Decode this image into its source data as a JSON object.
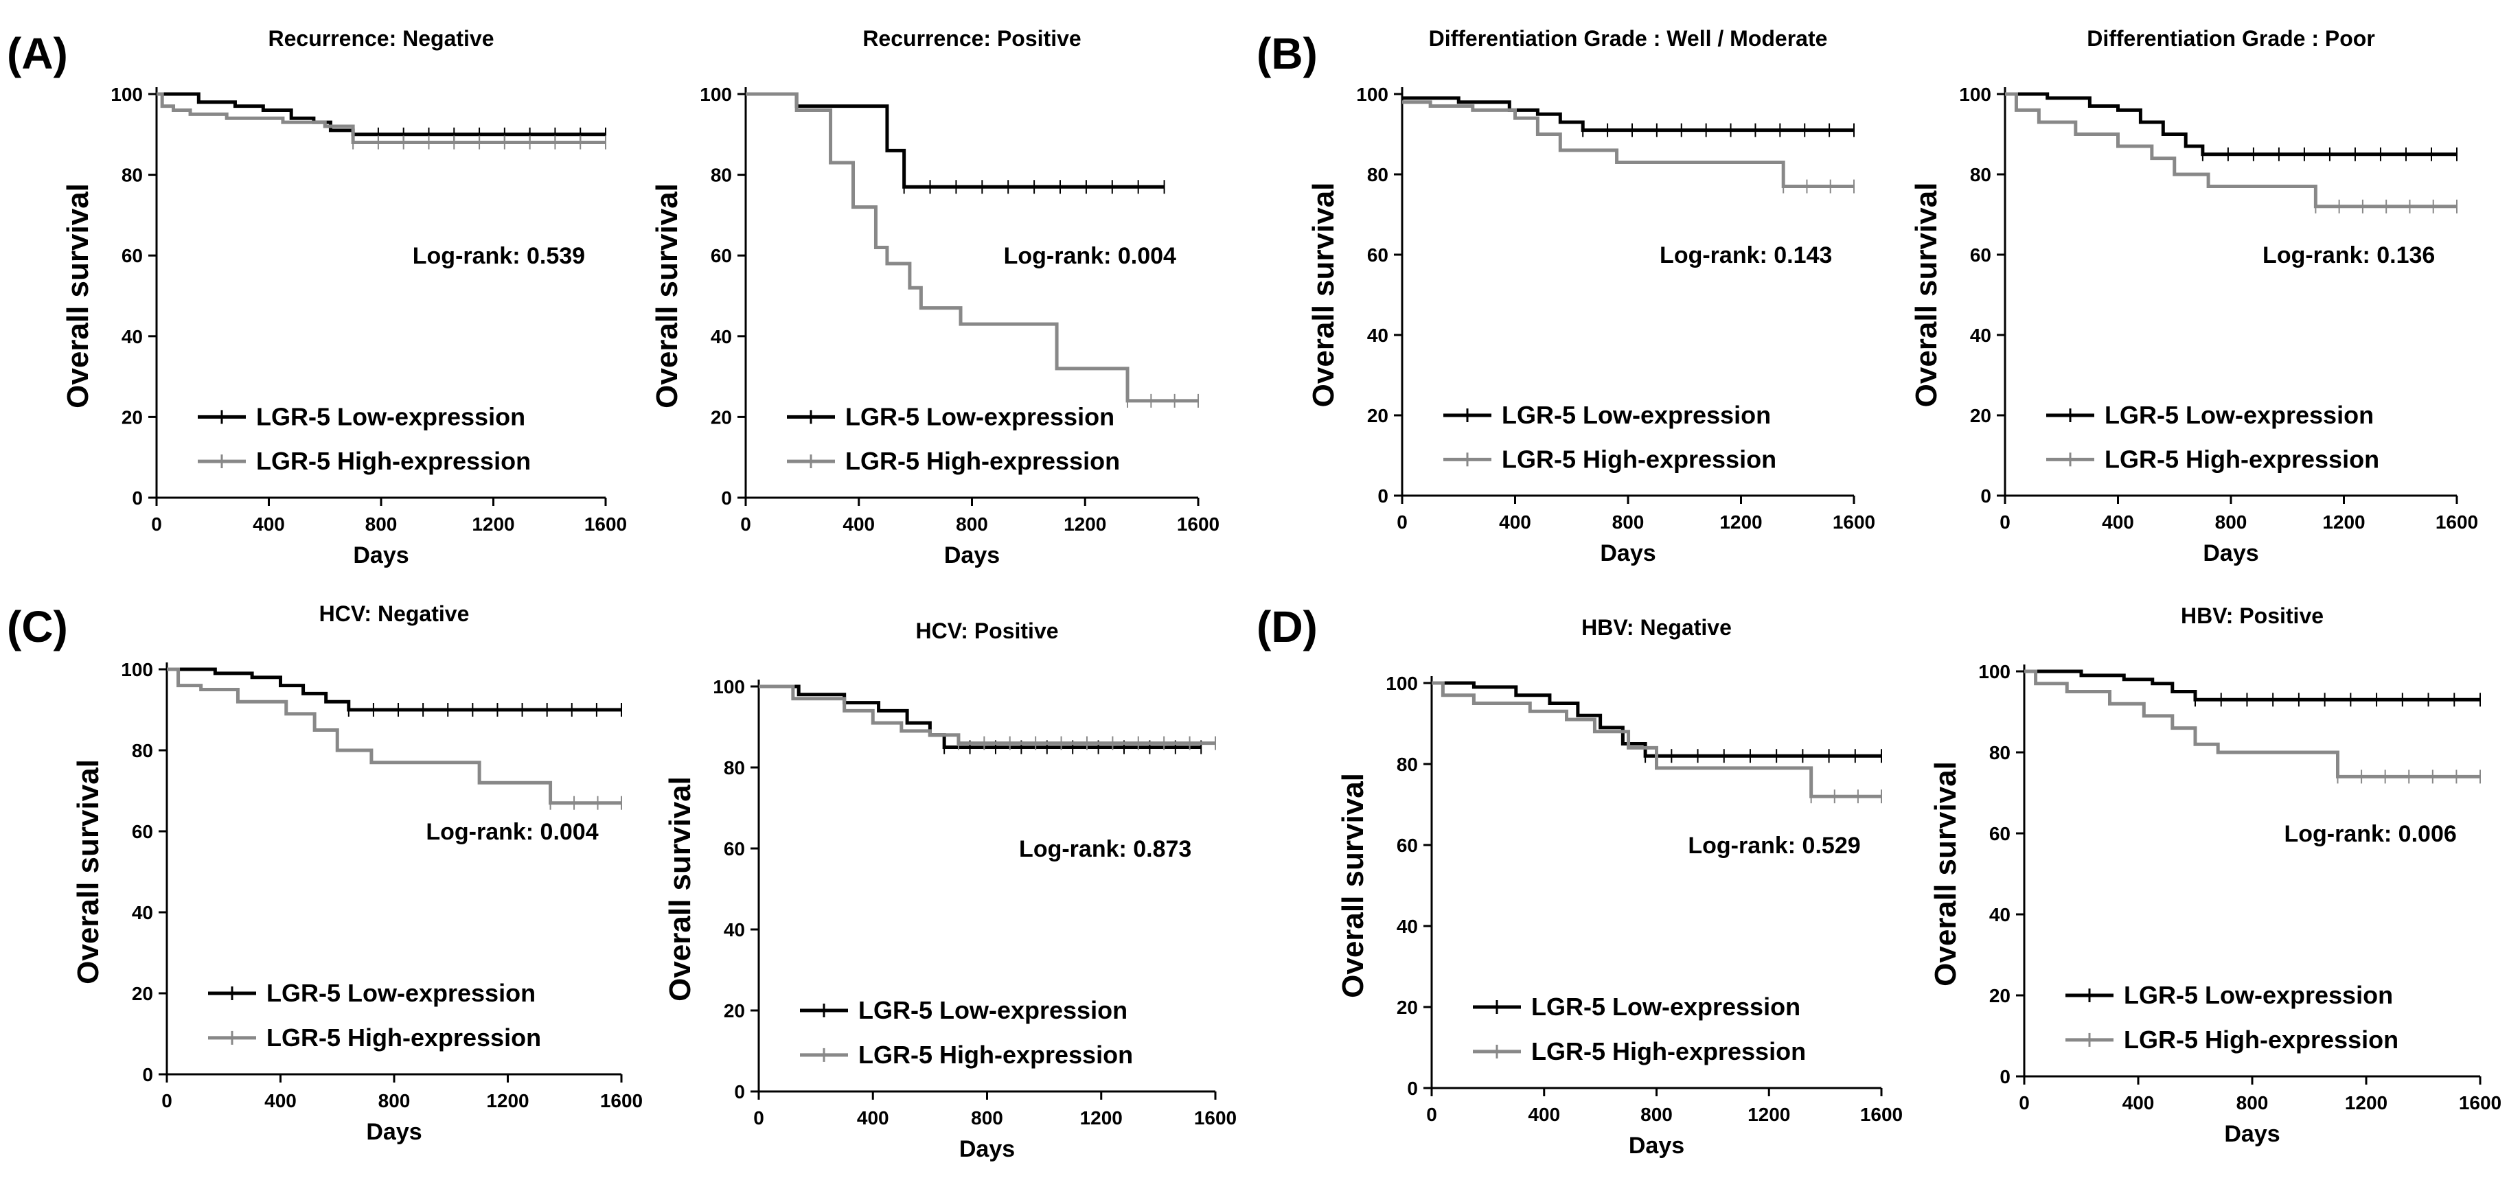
{
  "figure": {
    "panel_letters": [
      "(A)",
      "(B)",
      "(C)",
      "(D)"
    ]
  },
  "chart_data": [
    {
      "type": "line",
      "panel": "(A)",
      "title": "Recurrence: Negative",
      "xlabel": "Days",
      "ylabel": "Overall survival",
      "xlim": [
        0,
        1600
      ],
      "ylim": [
        0,
        100
      ],
      "xticks": [
        0,
        400,
        800,
        1200,
        1600
      ],
      "yticks": [
        0,
        20,
        40,
        60,
        80,
        100
      ],
      "annotation": "Log-rank: 0.539",
      "series": [
        {
          "name": "LGR-5  Low-expression",
          "color": "#000000",
          "x": [
            0,
            150,
            280,
            380,
            480,
            560,
            620,
            700,
            1600
          ],
          "y": [
            100,
            98,
            97,
            96,
            94,
            93,
            91,
            90,
            90
          ]
        },
        {
          "name": "LGR-5  High-expression",
          "color": "#888888",
          "x": [
            0,
            20,
            60,
            120,
            250,
            450,
            600,
            700,
            1600
          ],
          "y": [
            100,
            97,
            96,
            95,
            94,
            93,
            92,
            88,
            88
          ]
        }
      ]
    },
    {
      "type": "line",
      "panel": "(A)",
      "title": "Recurrence: Positive",
      "xlabel": "Days",
      "ylabel": "Overall survival",
      "xlim": [
        0,
        1600
      ],
      "ylim": [
        0,
        100
      ],
      "xticks": [
        0,
        400,
        800,
        1200,
        1600
      ],
      "yticks": [
        0,
        20,
        40,
        60,
        80,
        100
      ],
      "annotation": "Log-rank: 0.004",
      "series": [
        {
          "name": "LGR-5  Low-expression",
          "color": "#000000",
          "x": [
            0,
            180,
            500,
            560,
            1480
          ],
          "y": [
            100,
            97,
            86,
            77,
            77
          ]
        },
        {
          "name": "LGR-5  High-expression",
          "color": "#888888",
          "x": [
            0,
            180,
            300,
            380,
            460,
            500,
            580,
            620,
            760,
            1100,
            1350,
            1600
          ],
          "y": [
            100,
            96,
            83,
            72,
            62,
            58,
            52,
            47,
            43,
            32,
            24,
            24
          ]
        }
      ]
    },
    {
      "type": "line",
      "panel": "(B)",
      "title": "Differentiation Grade : Well / Moderate",
      "xlabel": "Days",
      "ylabel": "Overall survival",
      "xlim": [
        0,
        1600
      ],
      "ylim": [
        0,
        100
      ],
      "xticks": [
        0,
        400,
        800,
        1200,
        1600
      ],
      "yticks": [
        0,
        20,
        40,
        60,
        80,
        100
      ],
      "annotation": "Log-rank: 0.143",
      "series": [
        {
          "name": "LGR-5  Low-expression",
          "color": "#000000",
          "x": [
            0,
            200,
            380,
            480,
            560,
            640,
            1600
          ],
          "y": [
            99,
            98,
            96,
            95,
            93,
            91,
            91
          ]
        },
        {
          "name": "LGR-5  High-expression",
          "color": "#888888",
          "x": [
            0,
            100,
            250,
            400,
            480,
            560,
            760,
            1350,
            1600
          ],
          "y": [
            98,
            97,
            96,
            94,
            90,
            86,
            83,
            77,
            77
          ]
        }
      ]
    },
    {
      "type": "line",
      "panel": "(B)",
      "title": "Differentiation Grade : Poor",
      "xlabel": "Days",
      "ylabel": "Overall survival",
      "xlim": [
        0,
        1600
      ],
      "ylim": [
        0,
        100
      ],
      "xticks": [
        0,
        400,
        800,
        1200,
        1600
      ],
      "yticks": [
        0,
        20,
        40,
        60,
        80,
        100
      ],
      "annotation": "Log-rank: 0.136",
      "series": [
        {
          "name": "LGR-5  Low-expression",
          "color": "#000000",
          "x": [
            0,
            150,
            300,
            400,
            480,
            560,
            640,
            700,
            1600
          ],
          "y": [
            100,
            99,
            97,
            96,
            93,
            90,
            87,
            85,
            85
          ]
        },
        {
          "name": "LGR-5  High-expression",
          "color": "#888888",
          "x": [
            0,
            40,
            120,
            250,
            400,
            520,
            600,
            720,
            1100,
            1600
          ],
          "y": [
            100,
            96,
            93,
            90,
            87,
            84,
            80,
            77,
            72,
            72
          ]
        }
      ]
    },
    {
      "type": "line",
      "panel": "(C)",
      "title": "HCV: Negative",
      "xlabel": "Days",
      "ylabel": "Overall survival",
      "xlim": [
        0,
        1600
      ],
      "ylim": [
        0,
        100
      ],
      "xticks": [
        0,
        400,
        800,
        1200,
        1600
      ],
      "yticks": [
        0,
        20,
        40,
        60,
        80,
        100
      ],
      "annotation": "Log-rank: 0.004",
      "series": [
        {
          "name": "LGR-5  Low-expression",
          "color": "#000000",
          "x": [
            0,
            170,
            300,
            400,
            480,
            560,
            640,
            1600
          ],
          "y": [
            100,
            99,
            98,
            96,
            94,
            92,
            90,
            90
          ]
        },
        {
          "name": "LGR-5  High-expression",
          "color": "#888888",
          "x": [
            0,
            40,
            120,
            250,
            420,
            520,
            600,
            720,
            1100,
            1350,
            1600
          ],
          "y": [
            100,
            96,
            95,
            92,
            89,
            85,
            80,
            77,
            72,
            67,
            67
          ]
        }
      ]
    },
    {
      "type": "line",
      "panel": "(C)",
      "title": "HCV: Positive",
      "xlabel": "Days",
      "ylabel": "Overall survival",
      "xlim": [
        0,
        1600
      ],
      "ylim": [
        0,
        100
      ],
      "xticks": [
        0,
        400,
        800,
        1200,
        1600
      ],
      "yticks": [
        0,
        20,
        40,
        60,
        80,
        100
      ],
      "annotation": "Log-rank: 0.873",
      "series": [
        {
          "name": "LGR-5  Low-expression",
          "color": "#000000",
          "x": [
            0,
            140,
            300,
            420,
            520,
            600,
            650,
            1550
          ],
          "y": [
            100,
            98,
            96,
            94,
            91,
            88,
            85,
            85
          ]
        },
        {
          "name": "LGR-5  High-expression",
          "color": "#888888",
          "x": [
            0,
            120,
            300,
            400,
            500,
            600,
            700,
            1600
          ],
          "y": [
            100,
            97,
            94,
            91,
            89,
            88,
            86,
            86
          ]
        }
      ]
    },
    {
      "type": "line",
      "panel": "(D)",
      "title": "HBV: Negative",
      "xlabel": "Days",
      "ylabel": "Overall survival",
      "xlim": [
        0,
        1600
      ],
      "ylim": [
        0,
        100
      ],
      "xticks": [
        0,
        400,
        800,
        1200,
        1600
      ],
      "yticks": [
        0,
        20,
        40,
        60,
        80,
        100
      ],
      "annotation": "Log-rank: 0.529",
      "series": [
        {
          "name": "LGR-5  Low-expression",
          "color": "#000000",
          "x": [
            0,
            150,
            300,
            420,
            520,
            600,
            680,
            760,
            1600
          ],
          "y": [
            100,
            99,
            97,
            95,
            92,
            89,
            85,
            82,
            82
          ]
        },
        {
          "name": "LGR-5  High-expression",
          "color": "#888888",
          "x": [
            0,
            40,
            150,
            350,
            480,
            580,
            700,
            800,
            1350,
            1600
          ],
          "y": [
            100,
            97,
            95,
            93,
            91,
            88,
            84,
            79,
            72,
            72
          ]
        }
      ]
    },
    {
      "type": "line",
      "panel": "(D)",
      "title": "HBV: Positive",
      "xlabel": "Days",
      "ylabel": "Overall survival",
      "xlim": [
        0,
        1600
      ],
      "ylim": [
        0,
        100
      ],
      "xticks": [
        0,
        400,
        800,
        1200,
        1600
      ],
      "yticks": [
        0,
        20,
        40,
        60,
        80,
        100
      ],
      "annotation": "Log-rank: 0.006",
      "series": [
        {
          "name": "LGR-5  Low-expression",
          "color": "#000000",
          "x": [
            0,
            200,
            350,
            450,
            520,
            600,
            1600
          ],
          "y": [
            100,
            99,
            98,
            97,
            95,
            93,
            93
          ]
        },
        {
          "name": "LGR-5  High-expression",
          "color": "#888888",
          "x": [
            0,
            40,
            150,
            300,
            420,
            520,
            600,
            680,
            1100,
            1600
          ],
          "y": [
            100,
            97,
            95,
            92,
            89,
            86,
            82,
            80,
            74,
            74
          ]
        }
      ]
    }
  ]
}
